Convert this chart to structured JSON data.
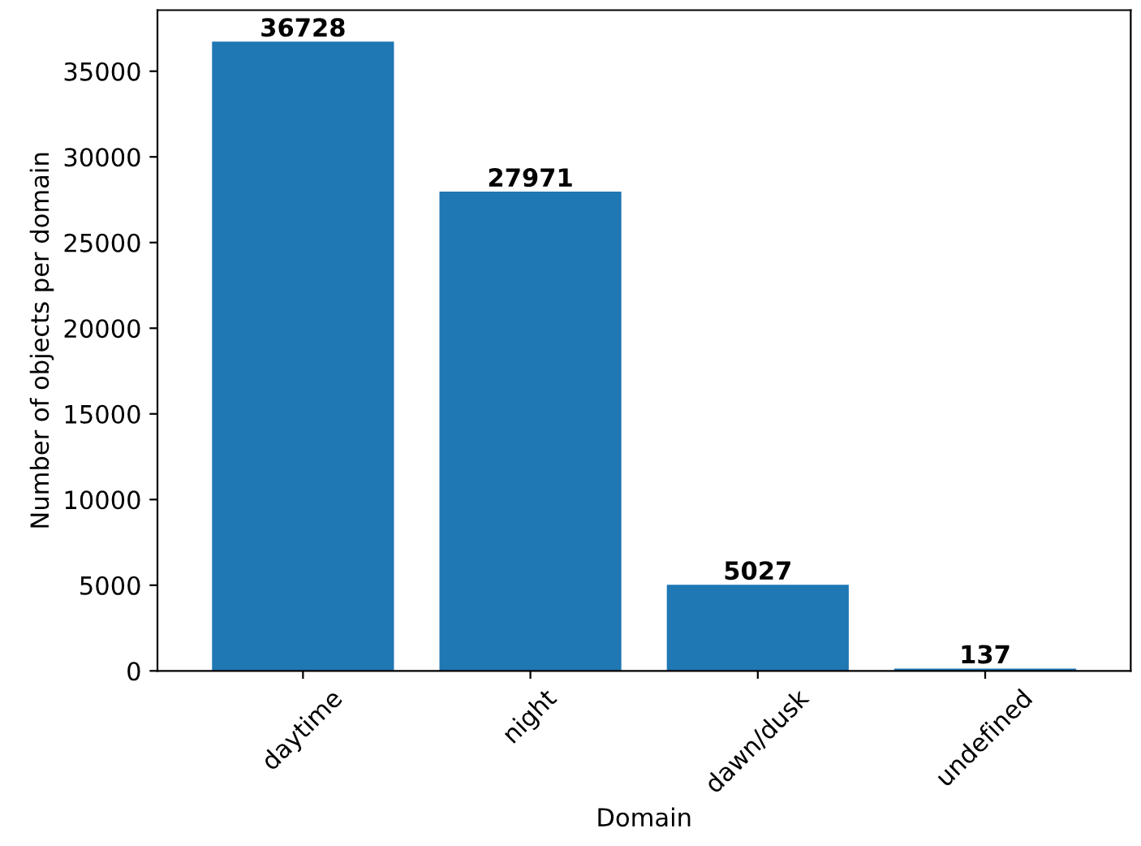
{
  "chart_data": {
    "type": "bar",
    "xlabel": "Domain",
    "ylabel": "Number of objects per domain",
    "categories": [
      "daytime",
      "night",
      "dawn/dusk",
      "undefined"
    ],
    "values": [
      36728,
      27971,
      5027,
      137
    ],
    "color": "#1f77b4",
    "data_labels": true,
    "ylim": [
      0,
      38564
    ],
    "yticks": [
      0,
      5000,
      10000,
      15000,
      20000,
      25000,
      30000,
      35000
    ],
    "grid": false,
    "legend": false
  }
}
